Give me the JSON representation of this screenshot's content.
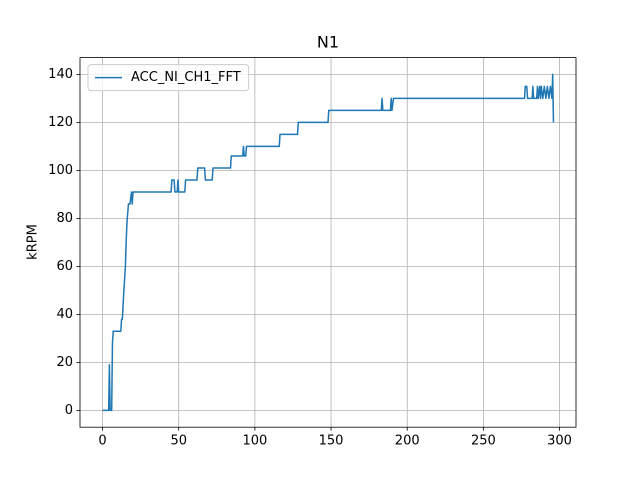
{
  "chart_data": {
    "type": "line",
    "title": "N1",
    "ylabel": "kRPM",
    "x": [
      0,
      4,
      4.5,
      5,
      6,
      6.5,
      7,
      12,
      12.5,
      13,
      14,
      15,
      15.5,
      16,
      17,
      18,
      19,
      19.5,
      20,
      45,
      45.5,
      47,
      47.5,
      49,
      49.5,
      50,
      54,
      54.5,
      62,
      62.5,
      67,
      67.5,
      72,
      72.5,
      84,
      84.5,
      92,
      92.5,
      93,
      94,
      94.5,
      116,
      116.5,
      128,
      128.5,
      148,
      148.5,
      183,
      183.5,
      184,
      189,
      189.5,
      190,
      191,
      277,
      277.5,
      278.5,
      279,
      282,
      282.5,
      283,
      285,
      285.5,
      286,
      287,
      287.5,
      288,
      289,
      290,
      291,
      292,
      293,
      294,
      295,
      295.5,
      296
    ],
    "series": [
      {
        "name": "ACC_NI_CH1_FFT",
        "color": "#1f77b4",
        "values": [
          0,
          0,
          19,
          0,
          0,
          28,
          33,
          33,
          38,
          38,
          50,
          60,
          70,
          78,
          86,
          86,
          91,
          86,
          91,
          91,
          96,
          96,
          91,
          91,
          96,
          91,
          91,
          96,
          96,
          101,
          101,
          96,
          96,
          101,
          101,
          106,
          106,
          110,
          106,
          106,
          110,
          110,
          115,
          115,
          120,
          120,
          125,
          125,
          130,
          125,
          125,
          130,
          125,
          130,
          130,
          135,
          135,
          130,
          130,
          135,
          130,
          130,
          135,
          130,
          135,
          130,
          135,
          130,
          135,
          130,
          135,
          130,
          135,
          130,
          140,
          120
        ]
      }
    ],
    "xlim": [
      -14.8,
      310.8
    ],
    "ylim": [
      -7,
      147
    ],
    "xticks": [
      0,
      50,
      100,
      150,
      200,
      250,
      300
    ],
    "yticks": [
      0,
      20,
      40,
      60,
      80,
      100,
      120,
      140
    ],
    "grid": true,
    "legend": "upper-left"
  }
}
